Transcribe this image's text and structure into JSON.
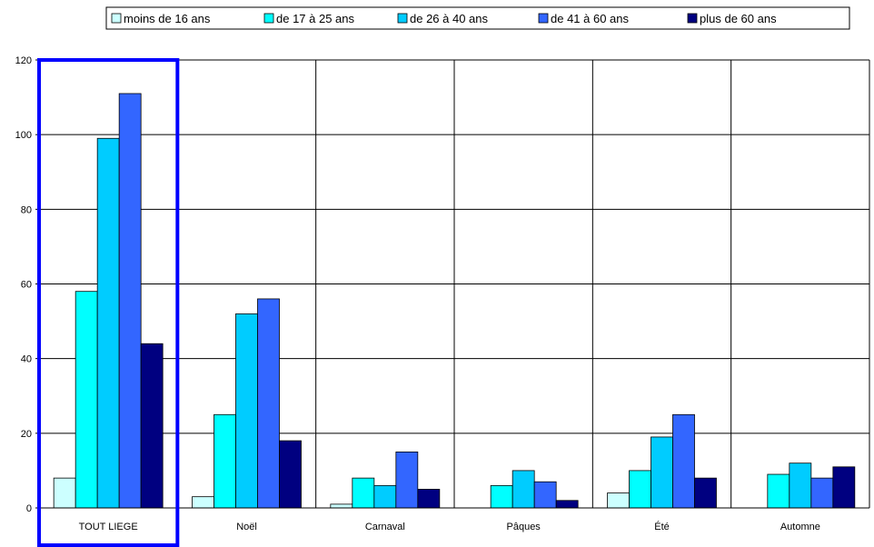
{
  "chart_data": {
    "type": "bar",
    "categories": [
      "TOUT LIEGE",
      "Noël",
      "Carnaval",
      "Pâques",
      "Été",
      "Automne"
    ],
    "series": [
      {
        "name": "moins de 16 ans",
        "color": "#ccffff",
        "values": [
          8,
          3,
          1,
          0,
          4,
          0
        ]
      },
      {
        "name": "de 17 à 25 ans",
        "color": "#00ffff",
        "values": [
          58,
          25,
          8,
          6,
          10,
          9
        ]
      },
      {
        "name": "de 26 à 40 ans",
        "color": "#00ccff",
        "values": [
          99,
          52,
          6,
          10,
          19,
          12
        ]
      },
      {
        "name": "de 41 à 60 ans",
        "color": "#3366ff",
        "values": [
          111,
          56,
          15,
          7,
          25,
          8
        ]
      },
      {
        "name": "plus de 60 ans",
        "color": "#000080",
        "values": [
          44,
          18,
          5,
          2,
          8,
          11
        ]
      }
    ],
    "y_ticks": [
      "0",
      "20",
      "40",
      "60",
      "80",
      "100",
      "120"
    ],
    "ylim": [
      0,
      120
    ],
    "grid": true,
    "legend_position": "top",
    "highlight": {
      "category": "TOUT LIEGE",
      "color": "#0000ff"
    }
  }
}
